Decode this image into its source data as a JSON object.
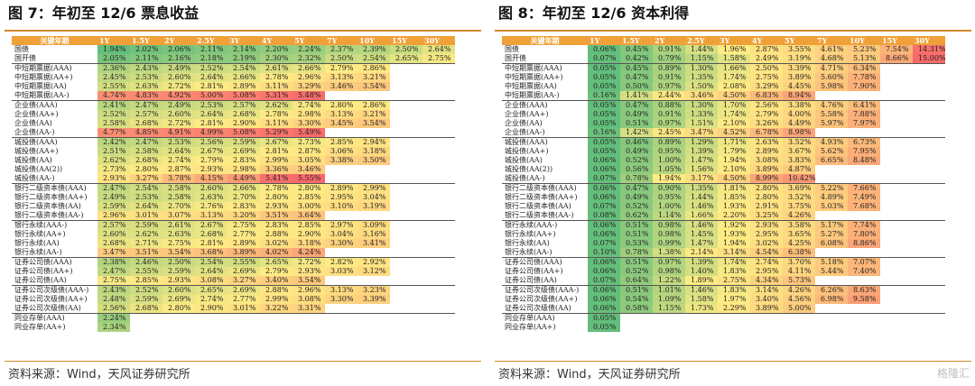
{
  "watermark": "格隆汇",
  "colors": {
    "accent": "#f0a038",
    "green": "#63be7b",
    "yellow": "#ffeb84",
    "red": "#f8696b"
  },
  "left": {
    "title": "图 7：年初至 12/6 票息收益",
    "source": "资料来源：Wind，天风证券研究所",
    "headers": [
      "关键年期",
      "1Y",
      "1.5Y",
      "2Y",
      "2.5Y",
      "3Y",
      "4Y",
      "5Y",
      "7Y",
      "10Y",
      "15Y",
      "30Y"
    ],
    "groups": [
      [
        [
          "国债",
          "1.94%",
          "2.02%",
          "2.06%",
          "2.11%",
          "2.14%",
          "2.20%",
          "2.24%",
          "2.37%",
          "2.39%",
          "2.50%",
          "2.64%"
        ],
        [
          "国开债",
          "2.05%",
          "2.11%",
          "2.16%",
          "2.18%",
          "2.19%",
          "2.30%",
          "2.32%",
          "2.50%",
          "2.54%",
          "2.65%",
          "2.75%"
        ]
      ],
      [
        [
          "中短期票据(AAA)",
          "2.36%",
          "2.43%",
          "2.49%",
          "2.52%",
          "2.54%",
          "2.61%",
          "2.66%",
          "2.79%",
          "2.86%",
          "",
          ""
        ],
        [
          "中短期票据(AA+)",
          "2.45%",
          "2.53%",
          "2.60%",
          "2.64%",
          "2.66%",
          "2.78%",
          "2.96%",
          "3.13%",
          "3.21%",
          "",
          ""
        ],
        [
          "中短期票据(AA)",
          "2.55%",
          "2.63%",
          "2.72%",
          "2.81%",
          "2.89%",
          "3.11%",
          "3.29%",
          "3.46%",
          "3.54%",
          "",
          ""
        ],
        [
          "中短期票据(AA-)",
          "4.74%",
          "4.83%",
          "4.92%",
          "5.00%",
          "5.08%",
          "5.31%",
          "5.48%",
          "",
          "",
          "",
          ""
        ]
      ],
      [
        [
          "企业债(AAA)",
          "2.41%",
          "2.47%",
          "2.49%",
          "2.53%",
          "2.57%",
          "2.62%",
          "2.74%",
          "2.80%",
          "2.86%",
          "",
          ""
        ],
        [
          "企业债(AA+)",
          "2.52%",
          "2.57%",
          "2.60%",
          "2.64%",
          "2.68%",
          "2.78%",
          "2.98%",
          "3.13%",
          "3.21%",
          "",
          ""
        ],
        [
          "企业债(AA)",
          "2.58%",
          "2.68%",
          "2.72%",
          "2.81%",
          "2.90%",
          "3.11%",
          "3.30%",
          "3.45%",
          "3.54%",
          "",
          ""
        ],
        [
          "企业债(AA-)",
          "4.77%",
          "4.85%",
          "4.91%",
          "4.99%",
          "5.08%",
          "5.29%",
          "5.49%",
          "",
          "",
          "",
          ""
        ]
      ],
      [
        [
          "城投债(AAA)",
          "2.42%",
          "2.47%",
          "2.53%",
          "2.56%",
          "2.59%",
          "2.67%",
          "2.73%",
          "2.85%",
          "2.94%",
          "",
          ""
        ],
        [
          "城投债(AA+)",
          "2.51%",
          "2.58%",
          "2.64%",
          "2.67%",
          "2.69%",
          "2.81%",
          "2.87%",
          "3.06%",
          "3.18%",
          "",
          ""
        ],
        [
          "城投债(AA)",
          "2.62%",
          "2.68%",
          "2.74%",
          "2.79%",
          "2.83%",
          "2.99%",
          "3.05%",
          "3.38%",
          "3.50%",
          "",
          ""
        ],
        [
          "城投债(AA(2))",
          "2.73%",
          "2.80%",
          "2.87%",
          "2.93%",
          "2.98%",
          "3.36%",
          "3.46%",
          "",
          "",
          "",
          ""
        ],
        [
          "城投债(AA-)",
          "2.93%",
          "3.27%",
          "3.78%",
          "4.15%",
          "4.49%",
          "5.41%",
          "5.55%",
          "",
          "",
          "",
          ""
        ]
      ],
      [
        [
          "银行二级资本债(AAA)",
          "2.47%",
          "2.54%",
          "2.58%",
          "2.60%",
          "2.66%",
          "2.78%",
          "2.80%",
          "2.89%",
          "2.99%",
          "",
          ""
        ],
        [
          "银行二级资本债(AA+)",
          "2.49%",
          "2.53%",
          "2.58%",
          "2.63%",
          "2.70%",
          "2.80%",
          "2.85%",
          "2.95%",
          "3.04%",
          "",
          ""
        ],
        [
          "银行二级资本债(AA)",
          "2.59%",
          "2.64%",
          "2.70%",
          "2.76%",
          "2.83%",
          "2.93%",
          "3.00%",
          "3.10%",
          "3.19%",
          "",
          ""
        ],
        [
          "银行二级资本债(AA-)",
          "2.96%",
          "3.01%",
          "3.07%",
          "3.13%",
          "3.20%",
          "3.51%",
          "3.64%",
          "",
          "",
          "",
          ""
        ]
      ],
      [
        [
          "银行永续(AAA-)",
          "2.57%",
          "2.59%",
          "2.61%",
          "2.67%",
          "2.75%",
          "2.83%",
          "2.85%",
          "2.97%",
          "3.09%",
          "",
          ""
        ],
        [
          "银行永续(AA+)",
          "2.60%",
          "2.62%",
          "2.63%",
          "2.68%",
          "2.77%",
          "2.88%",
          "2.90%",
          "3.04%",
          "3.16%",
          "",
          ""
        ],
        [
          "银行永续(AA)",
          "2.68%",
          "2.71%",
          "2.75%",
          "2.81%",
          "2.89%",
          "3.02%",
          "3.18%",
          "3.30%",
          "3.41%",
          "",
          ""
        ],
        [
          "银行永续(AA-)",
          "3.47%",
          "3.51%",
          "3.54%",
          "3.68%",
          "3.89%",
          "4.02%",
          "4.24%",
          "",
          "",
          "",
          ""
        ]
      ],
      [
        [
          "证券公司债(AAA)",
          "2.38%",
          "2.46%",
          "2.50%",
          "2.54%",
          "2.55%",
          "2.65%",
          "2.72%",
          "2.82%",
          "2.92%",
          "",
          ""
        ],
        [
          "证券公司债(AA+)",
          "2.47%",
          "2.55%",
          "2.59%",
          "2.64%",
          "2.69%",
          "2.79%",
          "2.93%",
          "3.03%",
          "3.12%",
          "",
          ""
        ],
        [
          "证券公司债(AA)",
          "2.75%",
          "2.85%",
          "2.93%",
          "3.08%",
          "3.27%",
          "3.40%",
          "3.54%",
          "",
          "",
          "",
          ""
        ]
      ],
      [
        [
          "证券公司次级债(AAA-)",
          "2.43%",
          "2.52%",
          "2.60%",
          "2.65%",
          "2.69%",
          "2.88%",
          "2.96%",
          "3.13%",
          "3.23%",
          "",
          ""
        ],
        [
          "证券公司次级债(AA+)",
          "2.48%",
          "2.59%",
          "2.69%",
          "2.74%",
          "2.77%",
          "2.99%",
          "3.08%",
          "3.30%",
          "3.39%",
          "",
          ""
        ],
        [
          "证券公司次级债(AA)",
          "2.56%",
          "2.68%",
          "2.80%",
          "2.90%",
          "3.01%",
          "3.22%",
          "3.31%",
          "",
          "",
          "",
          ""
        ]
      ],
      [
        [
          "同业存单(AAA)",
          "2.24%",
          "",
          "",
          "",
          "",
          "",
          "",
          "",
          "",
          "",
          ""
        ],
        [
          "同业存单(AA+)",
          "2.34%",
          "",
          "",
          "",
          "",
          "",
          "",
          "",
          "",
          "",
          ""
        ]
      ]
    ]
  },
  "right": {
    "title": "图 8：年初至 12/6 资本利得",
    "source": "资料来源：Wind，天风证券研究所",
    "headers": [
      "关键年期",
      "1Y",
      "1.5Y",
      "2Y",
      "2.5Y",
      "3Y",
      "4Y",
      "5Y",
      "7Y",
      "10Y",
      "15Y",
      "30Y"
    ],
    "groups": [
      [
        [
          "国债",
          "0.06%",
          "0.45%",
          "0.91%",
          "1.44%",
          "1.96%",
          "2.87%",
          "3.55%",
          "4.61%",
          "5.23%",
          "7.54%",
          "14.31%"
        ],
        [
          "国开债",
          "0.07%",
          "0.42%",
          "0.79%",
          "1.15%",
          "1.58%",
          "2.49%",
          "3.19%",
          "4.68%",
          "5.13%",
          "8.66%",
          "15.00%"
        ]
      ],
      [
        [
          "中短期票据(AAA)",
          "0.05%",
          "0.45%",
          "0.89%",
          "1.30%",
          "1.66%",
          "2.50%",
          "3.39%",
          "4.71%",
          "6.34%",
          "",
          ""
        ],
        [
          "中短期票据(AA+)",
          "0.05%",
          "0.47%",
          "0.91%",
          "1.35%",
          "1.74%",
          "2.75%",
          "3.89%",
          "5.60%",
          "7.78%",
          "",
          ""
        ],
        [
          "中短期票据(AA)",
          "0.05%",
          "0.50%",
          "0.97%",
          "1.50%",
          "2.08%",
          "3.29%",
          "4.45%",
          "5.98%",
          "7.90%",
          "",
          ""
        ],
        [
          "中短期票据(AA-)",
          "0.16%",
          "1.41%",
          "2.44%",
          "3.46%",
          "4.50%",
          "6.83%",
          "8.94%",
          "",
          "",
          "",
          ""
        ]
      ],
      [
        [
          "企业债(AAA)",
          "0.05%",
          "0.47%",
          "0.88%",
          "1.30%",
          "1.70%",
          "2.56%",
          "3.38%",
          "4.76%",
          "6.41%",
          "",
          ""
        ],
        [
          "企业债(AA+)",
          "0.05%",
          "0.49%",
          "0.91%",
          "1.33%",
          "1.74%",
          "2.79%",
          "4.00%",
          "5.58%",
          "7.88%",
          "",
          ""
        ],
        [
          "企业债(AA)",
          "0.05%",
          "0.51%",
          "0.97%",
          "1.51%",
          "2.10%",
          "3.26%",
          "4.49%",
          "5.97%",
          "7.97%",
          "",
          ""
        ],
        [
          "企业债(AA-)",
          "0.16%",
          "1.42%",
          "2.45%",
          "3.47%",
          "4.52%",
          "6.78%",
          "8.98%",
          "",
          "",
          "",
          ""
        ]
      ],
      [
        [
          "城投债(AAA)",
          "0.05%",
          "0.46%",
          "0.89%",
          "1.29%",
          "1.71%",
          "2.63%",
          "3.52%",
          "4.93%",
          "6.73%",
          "",
          ""
        ],
        [
          "城投债(AA+)",
          "0.05%",
          "0.49%",
          "0.95%",
          "1.39%",
          "1.79%",
          "2.89%",
          "3.67%",
          "5.62%",
          "7.95%",
          "",
          ""
        ],
        [
          "城投债(AA)",
          "0.06%",
          "0.52%",
          "1.00%",
          "1.47%",
          "1.94%",
          "3.08%",
          "3.83%",
          "6.65%",
          "8.48%",
          "",
          ""
        ],
        [
          "城投债(AA(2))",
          "0.06%",
          "0.56%",
          "1.05%",
          "1.56%",
          "2.10%",
          "3.89%",
          "4.87%",
          "",
          "",
          "",
          ""
        ],
        [
          "城投债(AA-)",
          "0.07%",
          "0.78%",
          "1.94%",
          "3.17%",
          "4.50%",
          "8.99%",
          "10.42%",
          "",
          "",
          "",
          ""
        ]
      ],
      [
        [
          "银行二级资本债(AAA)",
          "0.06%",
          "0.47%",
          "0.90%",
          "1.35%",
          "1.81%",
          "2.80%",
          "3.69%",
          "5.22%",
          "7.66%",
          "",
          ""
        ],
        [
          "银行二级资本债(AA+)",
          "0.06%",
          "0.49%",
          "0.95%",
          "1.44%",
          "1.85%",
          "2.80%",
          "3.52%",
          "4.89%",
          "7.49%",
          "",
          ""
        ],
        [
          "银行二级资本债(AA)",
          "0.07%",
          "0.52%",
          "1.00%",
          "1.46%",
          "1.93%",
          "2.91%",
          "3.75%",
          "5.03%",
          "7.68%",
          "",
          ""
        ],
        [
          "银行二级资本债(AA-)",
          "0.08%",
          "0.62%",
          "1.14%",
          "1.66%",
          "2.20%",
          "3.25%",
          "4.26%",
          "",
          "",
          "",
          ""
        ]
      ],
      [
        [
          "银行永续(AAA-)",
          "0.06%",
          "0.51%",
          "0.98%",
          "1.46%",
          "1.92%",
          "2.93%",
          "3.58%",
          "5.17%",
          "7.74%",
          "",
          ""
        ],
        [
          "银行永续(AA+)",
          "0.06%",
          "0.51%",
          "0.98%",
          "1.45%",
          "1.93%",
          "2.95%",
          "3.65%",
          "5.27%",
          "7.80%",
          "",
          ""
        ],
        [
          "银行永续(AA)",
          "0.07%",
          "0.53%",
          "0.99%",
          "1.47%",
          "1.94%",
          "3.02%",
          "4.25%",
          "6.08%",
          "8.86%",
          "",
          ""
        ],
        [
          "银行永续(AA-)",
          "0.10%",
          "0.78%",
          "1.38%",
          "2.14%",
          "3.14%",
          "4.54%",
          "6.38%",
          "",
          "",
          "",
          ""
        ]
      ],
      [
        [
          "证券公司债(AAA)",
          "0.06%",
          "0.51%",
          "0.97%",
          "1.39%",
          "1.74%",
          "2.74%",
          "3.70%",
          "5.18%",
          "7.07%",
          "",
          ""
        ],
        [
          "证券公司债(AA+)",
          "0.06%",
          "0.52%",
          "0.98%",
          "1.40%",
          "1.83%",
          "2.95%",
          "4.11%",
          "5.44%",
          "7.40%",
          "",
          ""
        ],
        [
          "证券公司债(AA)",
          "0.07%",
          "0.64%",
          "1.22%",
          "1.89%",
          "2.75%",
          "4.34%",
          "5.73%",
          "",
          "",
          "",
          ""
        ]
      ],
      [
        [
          "证券公司次级债(AAA-)",
          "0.06%",
          "0.51%",
          "1.01%",
          "1.46%",
          "1.83%",
          "3.14%",
          "4.26%",
          "6.26%",
          "8.63%",
          "",
          ""
        ],
        [
          "证券公司次级债(AA+)",
          "0.06%",
          "0.54%",
          "1.09%",
          "1.58%",
          "1.97%",
          "3.40%",
          "4.56%",
          "6.98%",
          "9.58%",
          "",
          ""
        ],
        [
          "证券公司次级债(AA)",
          "0.06%",
          "0.58%",
          "1.15%",
          "1.73%",
          "2.29%",
          "3.89%",
          "5.00%",
          "",
          "",
          "",
          ""
        ]
      ],
      [
        [
          "同业存单(AAA)",
          "0.05%",
          "",
          "",
          "",
          "",
          "",
          "",
          "",
          "",
          "",
          ""
        ],
        [
          "同业存单(AA+)",
          "0.05%",
          "",
          "",
          "",
          "",
          "",
          "",
          "",
          "",
          "",
          ""
        ]
      ]
    ]
  }
}
